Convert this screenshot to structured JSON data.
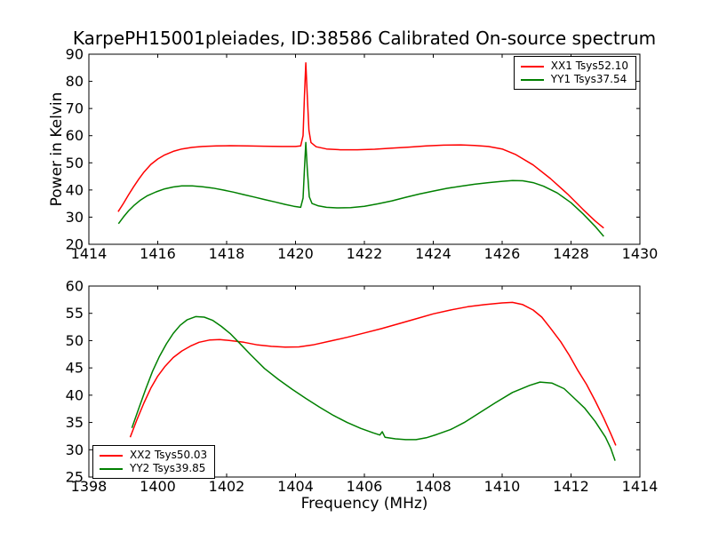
{
  "figure": {
    "title": "KarpePH15001pleiades, ID:38586 Calibrated On-source spectrum",
    "xlabel": "Frequency (MHz)",
    "ylabel": "Power in Kelvin",
    "background": "#ffffff",
    "frame_color": "#000000"
  },
  "chart_data": [
    {
      "type": "line",
      "position": "top",
      "x_range": [
        1414,
        1430
      ],
      "y_range": [
        20,
        90
      ],
      "x_ticks": [
        1414,
        1416,
        1418,
        1420,
        1422,
        1424,
        1426,
        1428,
        1430
      ],
      "y_ticks": [
        20,
        30,
        40,
        50,
        60,
        70,
        80,
        90
      ],
      "grid": false,
      "legend_position": "top-right",
      "spike_note": "narrow emission line at 1420.3 MHz in both polarisations",
      "series": [
        {
          "name": "XX1 Tsys52.10",
          "color": "#ff0000",
          "points": [
            [
              1414.85,
              32.0
            ],
            [
              1415.0,
              35.0
            ],
            [
              1415.15,
              38.2
            ],
            [
              1415.3,
              41.2
            ],
            [
              1415.45,
              44.0
            ],
            [
              1415.6,
              46.6
            ],
            [
              1415.8,
              49.4
            ],
            [
              1416.0,
              51.4
            ],
            [
              1416.2,
              52.9
            ],
            [
              1416.45,
              54.2
            ],
            [
              1416.7,
              55.1
            ],
            [
              1417.0,
              55.7
            ],
            [
              1417.3,
              56.0
            ],
            [
              1417.7,
              56.2
            ],
            [
              1418.1,
              56.3
            ],
            [
              1418.6,
              56.2
            ],
            [
              1419.1,
              56.1
            ],
            [
              1419.6,
              56.0
            ],
            [
              1420.0,
              56.0
            ],
            [
              1420.15,
              56.2
            ],
            [
              1420.22,
              60.0
            ],
            [
              1420.26,
              75.0
            ],
            [
              1420.3,
              86.8
            ],
            [
              1420.34,
              75.0
            ],
            [
              1420.39,
              62.0
            ],
            [
              1420.45,
              57.5
            ],
            [
              1420.6,
              55.9
            ],
            [
              1420.9,
              55.1
            ],
            [
              1421.3,
              54.8
            ],
            [
              1421.8,
              54.8
            ],
            [
              1422.3,
              55.0
            ],
            [
              1422.8,
              55.4
            ],
            [
              1423.3,
              55.8
            ],
            [
              1423.8,
              56.2
            ],
            [
              1424.3,
              56.5
            ],
            [
              1424.8,
              56.6
            ],
            [
              1425.2,
              56.4
            ],
            [
              1425.6,
              56.0
            ],
            [
              1426.0,
              55.1
            ],
            [
              1426.4,
              53.0
            ],
            [
              1426.9,
              49.2
            ],
            [
              1427.4,
              44.2
            ],
            [
              1427.9,
              38.5
            ],
            [
              1428.35,
              32.8
            ],
            [
              1428.7,
              28.6
            ],
            [
              1428.95,
              26.0
            ]
          ]
        },
        {
          "name": "YY1 Tsys37.54",
          "color": "#008000",
          "points": [
            [
              1414.86,
              27.6
            ],
            [
              1415.0,
              30.0
            ],
            [
              1415.15,
              32.3
            ],
            [
              1415.3,
              34.2
            ],
            [
              1415.5,
              36.3
            ],
            [
              1415.7,
              37.9
            ],
            [
              1415.95,
              39.3
            ],
            [
              1416.2,
              40.4
            ],
            [
              1416.45,
              41.1
            ],
            [
              1416.7,
              41.5
            ],
            [
              1417.0,
              41.5
            ],
            [
              1417.3,
              41.2
            ],
            [
              1417.6,
              40.7
            ],
            [
              1417.9,
              40.0
            ],
            [
              1418.2,
              39.2
            ],
            [
              1418.5,
              38.3
            ],
            [
              1418.8,
              37.4
            ],
            [
              1419.1,
              36.5
            ],
            [
              1419.4,
              35.6
            ],
            [
              1419.7,
              34.7
            ],
            [
              1419.95,
              34.0
            ],
            [
              1420.15,
              33.6
            ],
            [
              1420.22,
              37.0
            ],
            [
              1420.26,
              48.0
            ],
            [
              1420.3,
              57.5
            ],
            [
              1420.34,
              48.0
            ],
            [
              1420.4,
              37.5
            ],
            [
              1420.48,
              35.0
            ],
            [
              1420.65,
              34.2
            ],
            [
              1420.9,
              33.6
            ],
            [
              1421.2,
              33.4
            ],
            [
              1421.6,
              33.5
            ],
            [
              1422.0,
              34.0
            ],
            [
              1422.4,
              34.9
            ],
            [
              1422.8,
              36.0
            ],
            [
              1423.2,
              37.3
            ],
            [
              1423.6,
              38.5
            ],
            [
              1424.0,
              39.6
            ],
            [
              1424.4,
              40.6
            ],
            [
              1424.8,
              41.4
            ],
            [
              1425.2,
              42.1
            ],
            [
              1425.6,
              42.7
            ],
            [
              1426.0,
              43.2
            ],
            [
              1426.3,
              43.5
            ],
            [
              1426.6,
              43.4
            ],
            [
              1426.9,
              42.7
            ],
            [
              1427.2,
              41.4
            ],
            [
              1427.6,
              38.9
            ],
            [
              1428.0,
              35.3
            ],
            [
              1428.35,
              31.2
            ],
            [
              1428.7,
              26.6
            ],
            [
              1428.95,
              22.9
            ]
          ]
        }
      ]
    },
    {
      "type": "line",
      "position": "bottom",
      "x_range": [
        1398,
        1414
      ],
      "y_range": [
        25,
        60
      ],
      "x_ticks": [
        1398,
        1400,
        1402,
        1404,
        1406,
        1408,
        1410,
        1412,
        1414
      ],
      "y_ticks": [
        25,
        30,
        35,
        40,
        45,
        50,
        55,
        60
      ],
      "grid": false,
      "legend_position": "bottom-left",
      "series": [
        {
          "name": "XX2 Tsys50.03",
          "color": "#ff0000",
          "points": [
            [
              1399.2,
              32.3
            ],
            [
              1399.4,
              35.6
            ],
            [
              1399.6,
              38.6
            ],
            [
              1399.8,
              41.3
            ],
            [
              1400.0,
              43.5
            ],
            [
              1400.2,
              45.2
            ],
            [
              1400.45,
              46.9
            ],
            [
              1400.7,
              48.1
            ],
            [
              1400.95,
              49.0
            ],
            [
              1401.2,
              49.7
            ],
            [
              1401.5,
              50.1
            ],
            [
              1401.8,
              50.2
            ],
            [
              1402.1,
              50.0
            ],
            [
              1402.5,
              49.7
            ],
            [
              1402.9,
              49.2
            ],
            [
              1403.3,
              48.95
            ],
            [
              1403.7,
              48.8
            ],
            [
              1404.1,
              48.85
            ],
            [
              1404.5,
              49.2
            ],
            [
              1405.0,
              49.9
            ],
            [
              1405.5,
              50.6
            ],
            [
              1406.0,
              51.4
            ],
            [
              1406.5,
              52.2
            ],
            [
              1407.0,
              53.1
            ],
            [
              1407.5,
              54.0
            ],
            [
              1408.0,
              54.9
            ],
            [
              1408.5,
              55.6
            ],
            [
              1409.0,
              56.2
            ],
            [
              1409.5,
              56.6
            ],
            [
              1410.0,
              56.9
            ],
            [
              1410.3,
              57.0
            ],
            [
              1410.6,
              56.6
            ],
            [
              1410.9,
              55.6
            ],
            [
              1411.15,
              54.3
            ],
            [
              1411.4,
              52.3
            ],
            [
              1411.7,
              49.8
            ],
            [
              1411.95,
              47.3
            ],
            [
              1412.2,
              44.5
            ],
            [
              1412.45,
              42.0
            ],
            [
              1412.7,
              39.0
            ],
            [
              1412.95,
              35.8
            ],
            [
              1413.15,
              33.0
            ],
            [
              1413.3,
              30.8
            ]
          ]
        },
        {
          "name": "YY2 Tsys39.85",
          "color": "#008000",
          "points": [
            [
              1399.25,
              34.0
            ],
            [
              1399.45,
              37.6
            ],
            [
              1399.65,
              41.1
            ],
            [
              1399.85,
              44.4
            ],
            [
              1400.05,
              47.1
            ],
            [
              1400.25,
              49.4
            ],
            [
              1400.45,
              51.3
            ],
            [
              1400.65,
              52.8
            ],
            [
              1400.85,
              53.8
            ],
            [
              1401.1,
              54.4
            ],
            [
              1401.35,
              54.3
            ],
            [
              1401.6,
              53.7
            ],
            [
              1401.85,
              52.6
            ],
            [
              1402.1,
              51.3
            ],
            [
              1402.35,
              49.7
            ],
            [
              1402.7,
              47.4
            ],
            [
              1403.1,
              44.9
            ],
            [
              1403.5,
              42.9
            ],
            [
              1403.9,
              41.1
            ],
            [
              1404.3,
              39.4
            ],
            [
              1404.7,
              37.8
            ],
            [
              1405.1,
              36.3
            ],
            [
              1405.5,
              35.0
            ],
            [
              1405.9,
              33.9
            ],
            [
              1406.25,
              33.1
            ],
            [
              1406.45,
              32.7
            ],
            [
              1406.52,
              33.3
            ],
            [
              1406.6,
              32.3
            ],
            [
              1406.9,
              32.0
            ],
            [
              1407.2,
              31.85
            ],
            [
              1407.5,
              31.85
            ],
            [
              1407.8,
              32.2
            ],
            [
              1408.1,
              32.8
            ],
            [
              1408.5,
              33.7
            ],
            [
              1408.9,
              35.0
            ],
            [
              1409.3,
              36.6
            ],
            [
              1409.8,
              38.6
            ],
            [
              1410.3,
              40.5
            ],
            [
              1410.8,
              41.8
            ],
            [
              1411.1,
              42.4
            ],
            [
              1411.45,
              42.2
            ],
            [
              1411.8,
              41.2
            ],
            [
              1412.1,
              39.4
            ],
            [
              1412.4,
              37.6
            ],
            [
              1412.7,
              35.2
            ],
            [
              1413.0,
              32.3
            ],
            [
              1413.15,
              30.3
            ],
            [
              1413.28,
              28.0
            ]
          ]
        }
      ]
    }
  ]
}
